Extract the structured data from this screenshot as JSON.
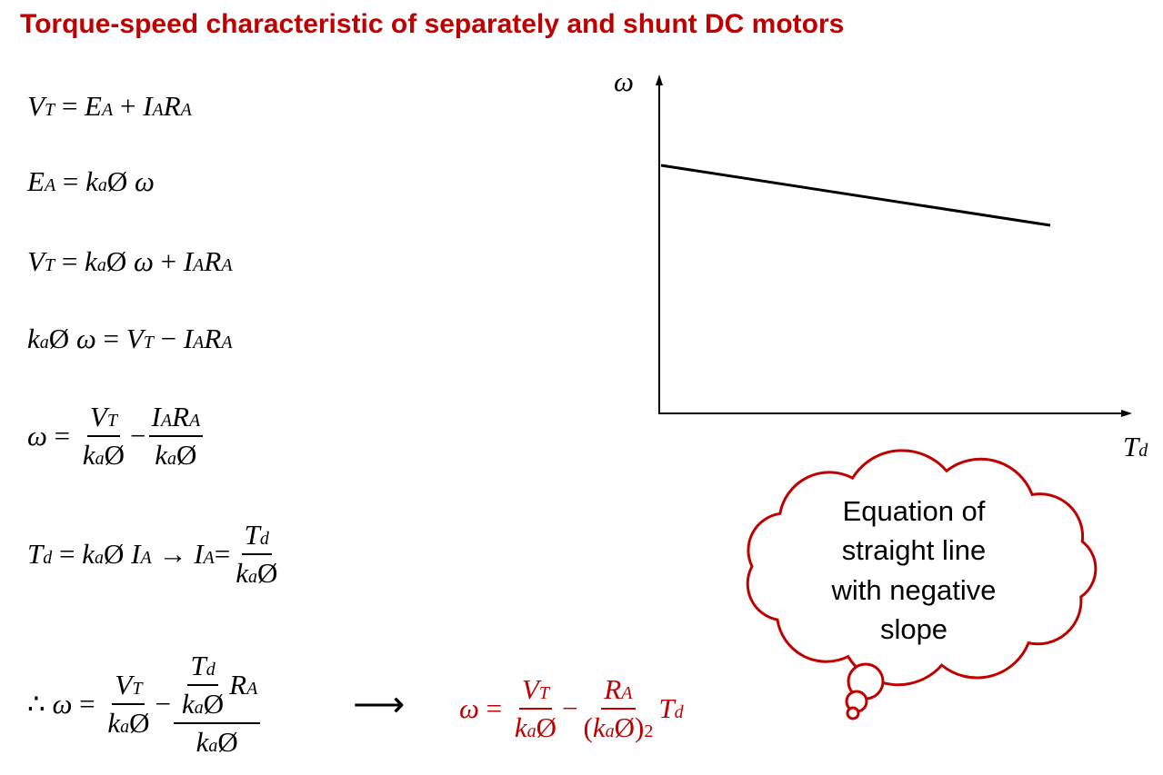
{
  "header": {
    "title": "Torque-speed characteristic of separately and shunt DC motors"
  },
  "equations": [
    [
      {
        "b": "V",
        "s": "T"
      },
      {
        "op": " = "
      },
      {
        "b": "E",
        "s": "A"
      },
      {
        "op": " + "
      },
      {
        "b": "I",
        "s": "A"
      },
      {
        "b": "R",
        "s": "A"
      }
    ],
    [
      {
        "b": "E",
        "s": "A"
      },
      {
        "op": " = "
      },
      {
        "b": "k",
        "s": "a"
      },
      {
        "op": "Ø "
      },
      {
        "b": "ω"
      }
    ],
    [
      {
        "b": "V",
        "s": "T"
      },
      {
        "op": " = "
      },
      {
        "b": "k",
        "s": "a"
      },
      {
        "op": "Ø "
      },
      {
        "b": "ω"
      },
      {
        "op": " + "
      },
      {
        "b": "I",
        "s": "A"
      },
      {
        "b": "R",
        "s": "A"
      }
    ],
    [
      {
        "b": "k",
        "s": "a"
      },
      {
        "op": "Ø "
      },
      {
        "b": "ω"
      },
      {
        "op": " = "
      },
      {
        "b": "V",
        "s": "T"
      },
      {
        "op": " − "
      },
      {
        "b": "I",
        "s": "A"
      },
      {
        "b": "R",
        "s": "A"
      }
    ],
    [
      {
        "b": "ω"
      },
      {
        "op": " = "
      },
      {
        "num": [
          {
            "b": "V",
            "s": "T"
          }
        ],
        "den": [
          {
            "b": "k",
            "s": "a"
          },
          {
            "op": "Ø"
          }
        ]
      },
      {
        "op": "−"
      },
      {
        "num": [
          {
            "b": "I",
            "s": "A"
          },
          {
            "b": "R",
            "s": "A"
          }
        ],
        "den": [
          {
            "b": "k",
            "s": "a"
          },
          {
            "op": "Ø"
          }
        ]
      }
    ],
    [
      {
        "b": "T",
        "s": "d"
      },
      {
        "op": " = "
      },
      {
        "b": "k",
        "s": "a"
      },
      {
        "op": "Ø "
      },
      {
        "b": "I",
        "s": "A"
      },
      {
        "op": " → "
      },
      {
        "b": "I",
        "s": "A"
      },
      {
        "op": "="
      },
      {
        "num": [
          {
            "b": "T",
            "s": "d"
          }
        ],
        "den": [
          {
            "b": "k",
            "s": "a"
          },
          {
            "op": "Ø"
          }
        ]
      }
    ],
    [
      {
        "op": "∴ "
      },
      {
        "b": "ω"
      },
      {
        "op": " = "
      },
      {
        "num": [
          {
            "b": "V",
            "s": "T"
          }
        ],
        "den": [
          {
            "b": "k",
            "s": "a"
          },
          {
            "op": "Ø"
          }
        ]
      },
      {
        "op": "−"
      },
      {
        "num": [
          {
            "num": [
              {
                "b": "T",
                "s": "d"
              }
            ],
            "den": [
              {
                "b": "k",
                "s": "a"
              },
              {
                "op": "Ø"
              }
            ]
          },
          {
            "b": "R",
            "s": "A"
          }
        ],
        "den": [
          {
            "b": "k",
            "s": "a"
          },
          {
            "op": "Ø"
          }
        ]
      }
    ]
  ],
  "arrow": "⟶",
  "result": [
    {
      "b": "ω"
    },
    {
      "op": " = "
    },
    {
      "num": [
        {
          "b": "V",
          "s": "T"
        }
      ],
      "den": [
        {
          "b": "k",
          "s": "a"
        },
        {
          "op": "Ø"
        }
      ]
    },
    {
      "op": "−"
    },
    {
      "num": [
        {
          "b": "R",
          "s": "A"
        }
      ],
      "den": [
        {
          "op": "("
        },
        {
          "b": "k",
          "s": "a"
        },
        {
          "op": "Ø)",
          "p": "2"
        }
      ]
    },
    {
      "b": "T",
      "s": "d"
    }
  ],
  "graph": {
    "y_label": "ω",
    "x_label": {
      "b": "T",
      "s": "d"
    }
  },
  "callout": {
    "lines": [
      "Equation of",
      "straight line",
      "with negative",
      "slope"
    ]
  }
}
